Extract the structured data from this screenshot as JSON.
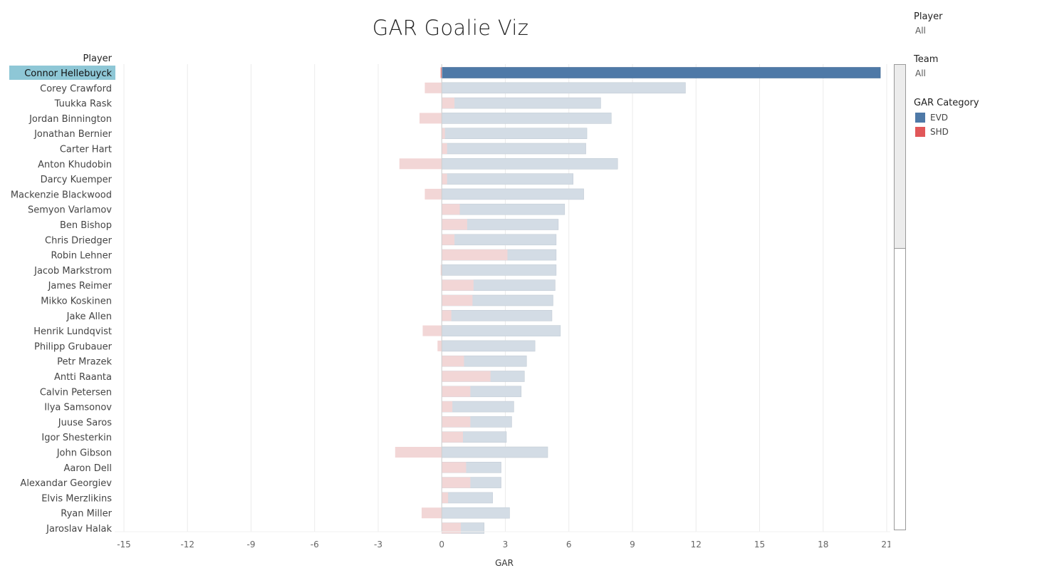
{
  "title": "GAR Goalie Viz",
  "filters": {
    "player": {
      "label": "Player",
      "value": "All"
    },
    "team": {
      "label": "Team",
      "value": "All"
    }
  },
  "legend": {
    "title": "GAR Category",
    "items": [
      {
        "label": "EVD",
        "color": "#4e79a7"
      },
      {
        "label": "SHD",
        "color": "#e15759"
      }
    ]
  },
  "chart_data": {
    "type": "bar",
    "orientation": "horizontal",
    "row_header": "Player",
    "xlabel": "GAR",
    "xlim": [
      -15,
      21
    ],
    "x_ticks": [
      "-15",
      "-12",
      "-9",
      "-6",
      "-3",
      "0",
      "3",
      "6",
      "9",
      "12",
      "15",
      "18",
      "21"
    ],
    "highlighted": "Connor Hellebuyck",
    "categories": [
      "Connor Hellebuyck",
      "Corey Crawford",
      "Tuukka Rask",
      "Jordan Binnington",
      "Jonathan Bernier",
      "Carter Hart",
      "Anton Khudobin",
      "Darcy Kuemper",
      "Mackenzie Blackwood",
      "Semyon Varlamov",
      "Ben Bishop",
      "Chris Driedger",
      "Robin Lehner",
      "Jacob Markstrom",
      "James Reimer",
      "Mikko Koskinen",
      "Jake Allen",
      "Henrik Lundqvist",
      "Philipp Grubauer",
      "Petr Mrazek",
      "Antti Raanta",
      "Calvin Petersen",
      "Ilya Samsonov",
      "Juuse Saros",
      "Igor Shesterkin",
      "John Gibson",
      "Aaron Dell",
      "Alexandar Georgiev",
      "Elvis Merzlikins",
      "Ryan Miller",
      "Jaroslav Halak"
    ],
    "series": [
      {
        "name": "EVD",
        "values": [
          20.7,
          11.5,
          7.5,
          8.0,
          6.85,
          6.8,
          8.3,
          6.2,
          6.7,
          5.8,
          5.5,
          5.4,
          5.4,
          5.4,
          5.35,
          5.25,
          5.2,
          5.6,
          4.4,
          4.0,
          3.9,
          3.75,
          3.4,
          3.3,
          3.05,
          5.0,
          2.8,
          2.8,
          2.4,
          3.2,
          2.0
        ]
      },
      {
        "name": "SHD",
        "values": [
          -0.05,
          -0.8,
          0.6,
          -1.05,
          0.15,
          0.25,
          -2.0,
          0.25,
          -0.8,
          0.85,
          1.2,
          0.6,
          3.1,
          -0.05,
          1.5,
          1.45,
          0.45,
          -0.9,
          -0.2,
          1.05,
          2.3,
          1.35,
          0.5,
          1.35,
          1.0,
          -2.2,
          1.15,
          1.35,
          0.3,
          -0.95,
          0.9
        ]
      }
    ]
  }
}
